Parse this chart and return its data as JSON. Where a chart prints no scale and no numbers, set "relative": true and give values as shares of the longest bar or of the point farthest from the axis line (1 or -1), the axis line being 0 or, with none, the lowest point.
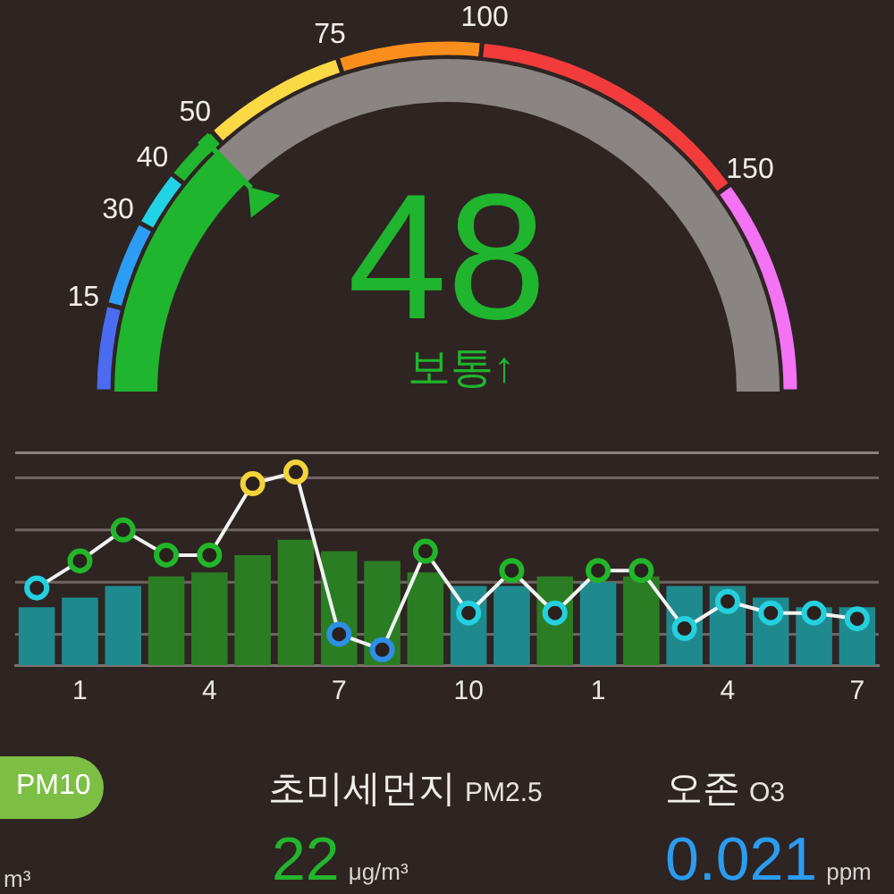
{
  "chart_data": [
    {
      "type": "donut",
      "categories": [
        null,
        null,
        null,
        null,
        null,
        null,
        null,
        null
      ],
      "values": [
        8,
        8,
        5.3,
        5.3,
        13.3,
        13.3,
        26.7,
        20.1
      ],
      "colors": [
        "#4b6cf0",
        "#2c9cf5",
        "#22d3e6",
        "#22b530",
        "#fbd945",
        "#f98e1c",
        "#f23b3b",
        "#f472f4"
      ],
      "annotations": [
        "15",
        "30",
        "40",
        "50",
        "75",
        "100",
        "150"
      ]
    },
    {
      "type": "donut",
      "categories": [
        null,
        null
      ],
      "values": [
        48,
        139.5
      ],
      "colors": [
        "#20b52e",
        "#8a8483"
      ],
      "value_labels": [
        "48",
        null
      ],
      "annotations": [
        "보통↑"
      ]
    },
    {
      "type": "bar",
      "relative": true,
      "categories": [
        null,
        "1",
        null,
        null,
        "4",
        null,
        null,
        "7",
        null,
        null,
        "10",
        null,
        null,
        "1",
        null,
        null,
        "4",
        null,
        null,
        "7"
      ],
      "series": [
        {
          "type": "bar",
          "colors": [
            "#1f8a8e",
            "#1f8a8e",
            "#1f8a8e",
            "#2b7d24",
            "#2b7d24",
            "#2b7d24",
            "#2b7d24",
            "#2b7d24",
            "#2b7d24",
            "#2b7d24",
            "#1f8a8e",
            "#1f8a8e",
            "#2b7d24",
            "#1f8a8e",
            "#2b7d24",
            "#1f8a8e",
            "#1f8a8e",
            "#1f8a8e",
            "#1f8a8e",
            "#1f8a8e"
          ],
          "values": [
            0.3,
            0.35,
            0.41,
            0.46,
            0.48,
            0.57,
            0.65,
            0.59,
            0.54,
            0.48,
            0.41,
            0.41,
            0.46,
            0.43,
            0.46,
            0.41,
            0.41,
            0.35,
            0.3,
            0.3
          ]
        },
        {
          "type": "line",
          "color": "#f2f2f2",
          "colors": [
            "#25d0de",
            "#22b52a",
            "#22b52a",
            "#22b52a",
            "#22b52a",
            "#f2d43a",
            "#f2d43a",
            "#2d8fe6",
            "#2d8fe6",
            "#22b52a",
            "#25d0de",
            "#22b52a",
            "#25d0de",
            "#22b52a",
            "#22b52a",
            "#25d0de",
            "#25d0de",
            "#25d0de",
            "#25d0de",
            "#25d0de"
          ],
          "values": [
            0.4,
            0.54,
            0.7,
            0.57,
            0.57,
            0.94,
            1,
            0.16,
            0.08,
            0.59,
            0.27,
            0.49,
            0.27,
            0.49,
            0.49,
            0.19,
            0.33,
            0.27,
            0.27,
            0.24
          ]
        }
      ],
      "marker": "circle",
      "ref_lines": [
        {
          "axis": "y",
          "value": 0.16,
          "color": "#6f6563"
        },
        {
          "axis": "y",
          "value": 0.43,
          "color": "#6f6563"
        },
        {
          "axis": "y",
          "value": 0.7,
          "color": "#6f6563"
        },
        {
          "axis": "y",
          "value": 0.97,
          "color": "#6f6563"
        },
        {
          "axis": "y",
          "value": 1.1,
          "color": "#8a8280"
        }
      ]
    },
    {
      "type": "other",
      "annotations": [
        "PM10",
        "초미세먼지",
        "PM2.5",
        "오존",
        "O3",
        "m³",
        "22",
        "μg/m³",
        "0.021",
        "ppm"
      ]
    }
  ]
}
